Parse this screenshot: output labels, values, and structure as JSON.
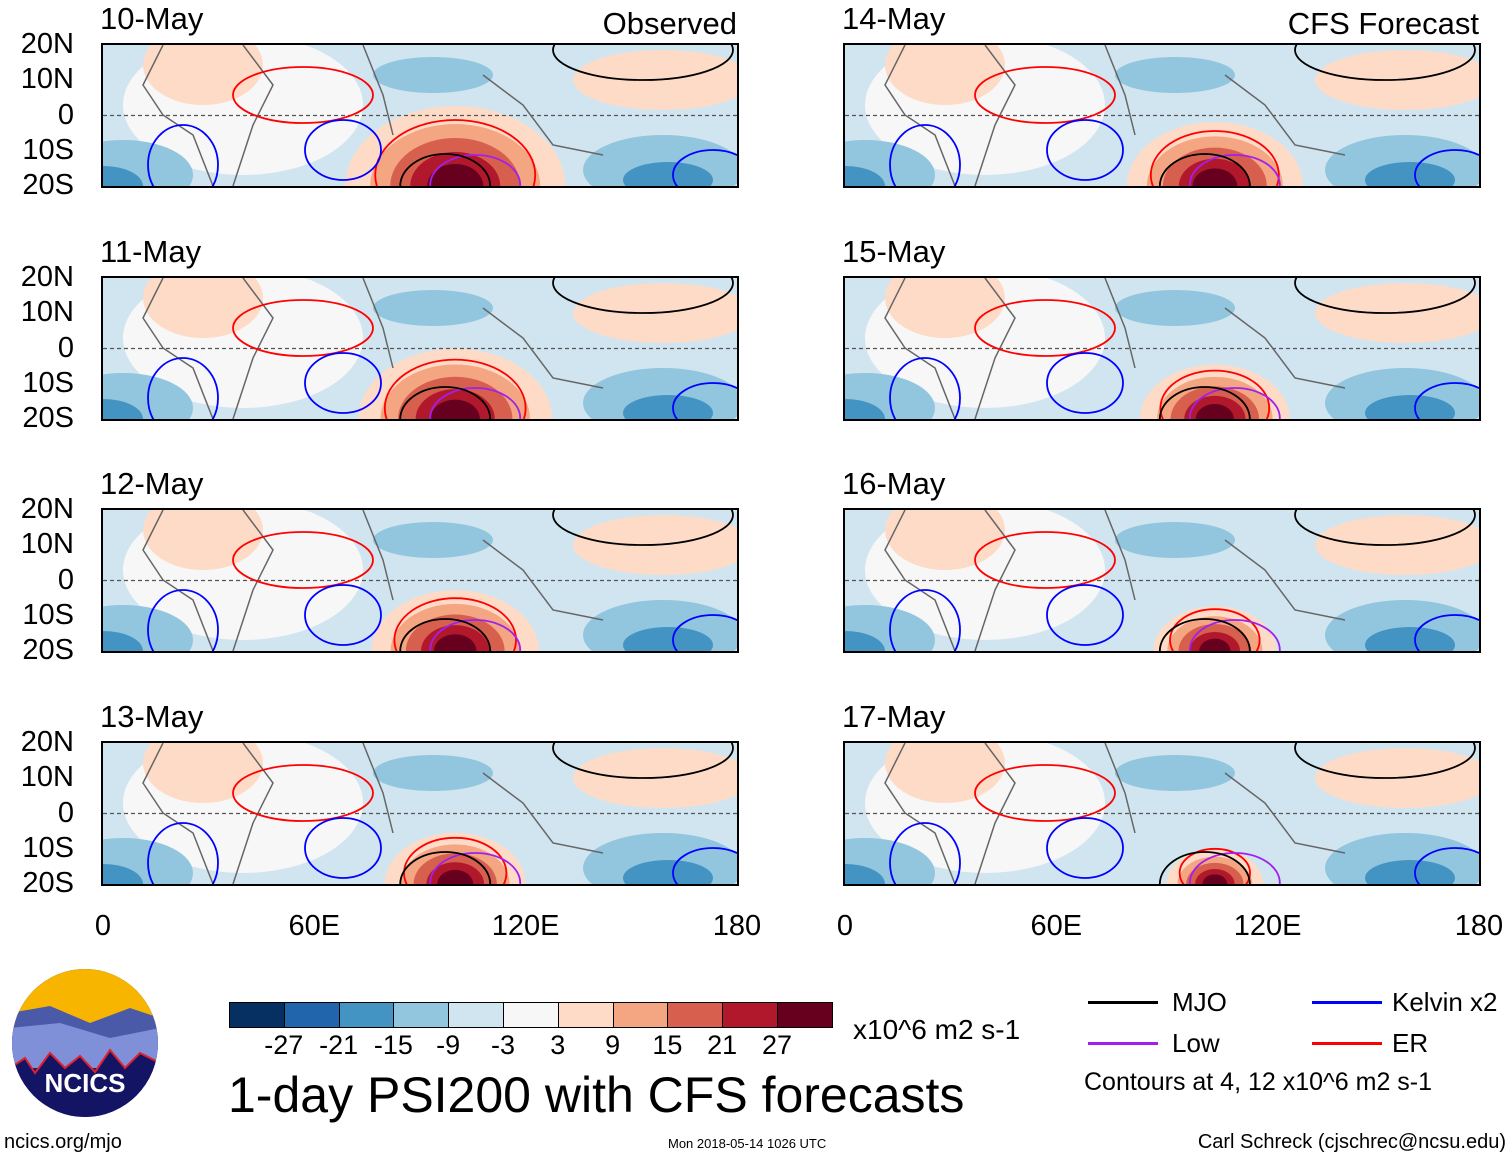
{
  "panels_left": {
    "header": "Observed",
    "dates": [
      "10-May",
      "11-May",
      "12-May",
      "13-May"
    ]
  },
  "panels_right": {
    "header": "CFS Forecast",
    "dates": [
      "14-May",
      "15-May",
      "16-May",
      "17-May"
    ]
  },
  "lat_labels": [
    "20N",
    "10N",
    "0",
    "10S",
    "20S"
  ],
  "lon_labels": [
    "0",
    "60E",
    "120E",
    "180"
  ],
  "colorbar": {
    "colors": [
      "#053061",
      "#2166ac",
      "#4393c3",
      "#92c5de",
      "#d1e5f0",
      "#f7f7f7",
      "#fddbc7",
      "#f4a582",
      "#d6604d",
      "#b2182b",
      "#67001f"
    ],
    "labels": [
      "-27",
      "-21",
      "-15",
      "-9",
      "-3",
      "3",
      "9",
      "15",
      "21",
      "27"
    ],
    "units": "x10^6 m2 s-1"
  },
  "title": "1-day PSI200 with CFS forecasts",
  "legend": {
    "items": [
      {
        "label": "MJO",
        "color": "#000000"
      },
      {
        "label": "Kelvin x2",
        "color": "#0000ff"
      },
      {
        "label": "Low",
        "color": "#a020f0"
      },
      {
        "label": "ER",
        "color": "#ff0000"
      }
    ],
    "note": "Contours at 4, 12 x10^6 m2 s-1"
  },
  "logo": {
    "text": "NCICS"
  },
  "footer": {
    "left": "ncics.org/mjo",
    "center": "Mon 2018-05-14 1026 UTC",
    "right": "Carl Schreck (cjschrec@ncsu.edu)"
  }
}
